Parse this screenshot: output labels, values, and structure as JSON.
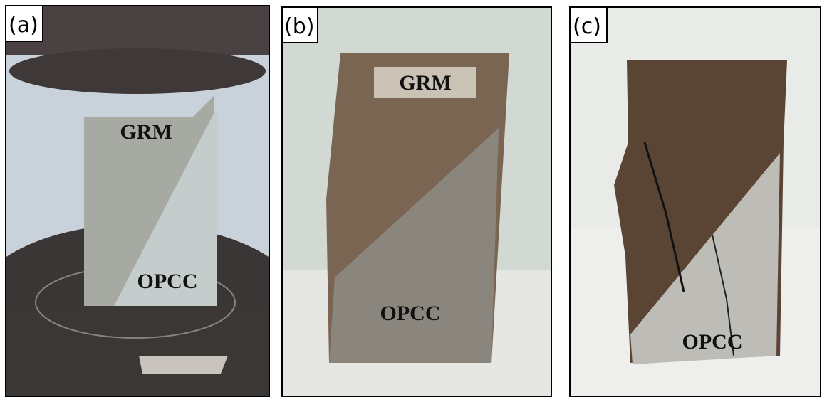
{
  "panels": [
    {
      "label": "(a)",
      "annotations": [
        "GRM",
        "OPCC"
      ]
    },
    {
      "label": "(b)",
      "annotations": [
        "GRM",
        "OPCC"
      ]
    },
    {
      "label": "(c)",
      "annotations": [
        "OPCC"
      ]
    }
  ]
}
